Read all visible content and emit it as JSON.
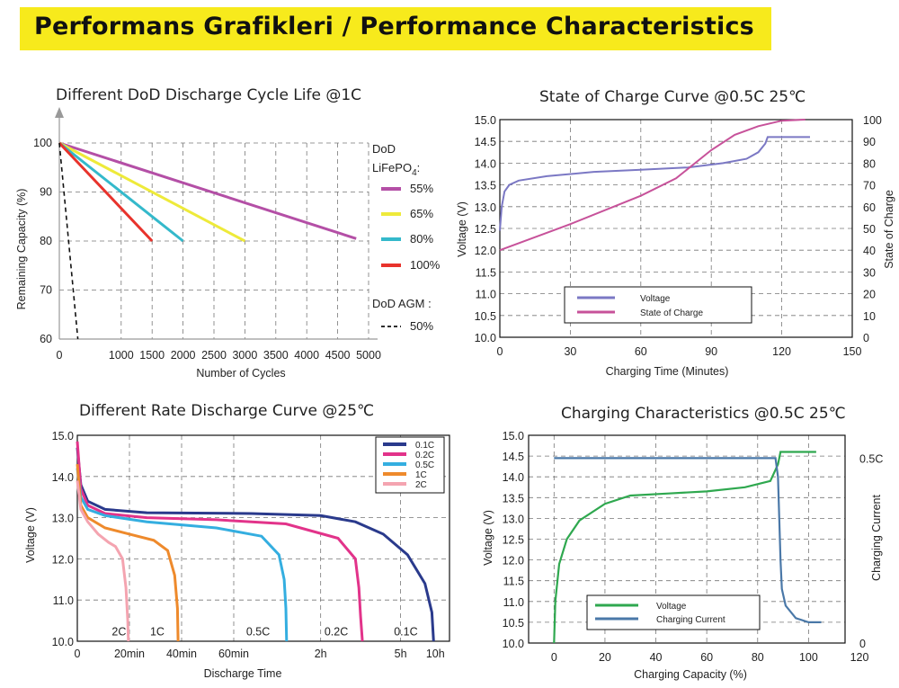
{
  "banner": {
    "title": "Performans Grafikleri / Performance Characteristics",
    "color": "#f7ea1c"
  },
  "chart_data": [
    {
      "id": "dod",
      "type": "line",
      "title": "Different DoD Discharge Cycle Life @1C",
      "xlabel": "Number of Cycles",
      "ylabel": "Remaining Capacity (%)",
      "xlim": [
        0,
        5000
      ],
      "ylim": [
        60,
        100
      ],
      "xticks": [
        "0",
        "1000",
        "1500",
        "2000",
        "2500",
        "3000",
        "3500",
        "4000",
        "4500",
        "5000"
      ],
      "xtick_values": [
        0,
        1000,
        1500,
        2000,
        2500,
        3000,
        3500,
        4000,
        4500,
        5000
      ],
      "yticks": [
        "60",
        "70",
        "80",
        "90",
        "100"
      ],
      "ytick_values": [
        60,
        70,
        80,
        90,
        100
      ],
      "grid": true,
      "legend_header": "DoD",
      "legend_chem": "LiFePO",
      "legend_chem_sub": "4",
      "legend_chem_tail": ":",
      "legend_header2": "DoD AGM :",
      "series": [
        {
          "name": "55%",
          "color": "#b44fa6",
          "dash": false,
          "points": [
            [
              0,
              100
            ],
            [
              4800,
              80.5
            ]
          ]
        },
        {
          "name": "65%",
          "color": "#eeea3a",
          "dash": false,
          "points": [
            [
              0,
              100
            ],
            [
              3000,
              80
            ]
          ]
        },
        {
          "name": "80%",
          "color": "#34b9cb",
          "dash": false,
          "points": [
            [
              0,
              100
            ],
            [
              2000,
              80
            ]
          ]
        },
        {
          "name": "100%",
          "color": "#e8332c",
          "dash": false,
          "points": [
            [
              0,
              100
            ],
            [
              1500,
              80
            ]
          ]
        },
        {
          "name": "50%",
          "color": "#111111",
          "dash": true,
          "points": [
            [
              0,
              100
            ],
            [
              300,
              60
            ]
          ]
        }
      ]
    },
    {
      "id": "soc",
      "type": "line",
      "title": "State of Charge Curve @0.5C 25℃",
      "xlabel": "Charging Time (Minutes)",
      "ylabel": "Voltage (V)",
      "ylabel_right": "State of Charge",
      "xlim": [
        0,
        150
      ],
      "ylim": [
        10.0,
        15.0
      ],
      "ylim_right": [
        0,
        100
      ],
      "xticks": [
        "0",
        "30",
        "60",
        "90",
        "120",
        "150"
      ],
      "xtick_values": [
        0,
        30,
        60,
        90,
        120,
        150
      ],
      "yticks": [
        "10.0",
        "10.5",
        "11.0",
        "11.5",
        "12.0",
        "12.5",
        "13.0",
        "13.5",
        "14.0",
        "14.5",
        "15.0"
      ],
      "ytick_values": [
        10.0,
        10.5,
        11.0,
        11.5,
        12.0,
        12.5,
        13.0,
        13.5,
        14.0,
        14.5,
        15.0
      ],
      "yticks_right": [
        "0",
        "10",
        "20",
        "30",
        "40",
        "50",
        "60",
        "70",
        "80",
        "90",
        "100"
      ],
      "ytick_right_values": [
        0,
        10,
        20,
        30,
        40,
        50,
        60,
        70,
        80,
        90,
        100
      ],
      "grid": true,
      "series": [
        {
          "name": "Voltage",
          "color": "#7b78c4",
          "axis": "left",
          "points": [
            [
              0,
              12.45
            ],
            [
              0.8,
              13.0
            ],
            [
              2,
              13.35
            ],
            [
              4,
              13.5
            ],
            [
              8,
              13.6
            ],
            [
              20,
              13.7
            ],
            [
              40,
              13.8
            ],
            [
              60,
              13.85
            ],
            [
              80,
              13.9
            ],
            [
              95,
              14.0
            ],
            [
              105,
              14.1
            ],
            [
              110,
              14.25
            ],
            [
              113,
              14.45
            ],
            [
              114,
              14.6
            ],
            [
              132,
              14.6
            ]
          ]
        },
        {
          "name": "State of Charge",
          "color": "#c7529a",
          "axis": "right",
          "points": [
            [
              0,
              40
            ],
            [
              30,
              52
            ],
            [
              60,
              65
            ],
            [
              75,
              73
            ],
            [
              90,
              86
            ],
            [
              100,
              93
            ],
            [
              110,
              97
            ],
            [
              120,
              99.5
            ],
            [
              130,
              100
            ]
          ]
        }
      ]
    },
    {
      "id": "rate",
      "type": "line",
      "title": "Different Rate Discharge Curve @25℃",
      "xlabel": "Discharge Time",
      "ylabel": "Voltage (V)",
      "xlim": [
        0,
        10.5
      ],
      "ylim": [
        10.0,
        15.0
      ],
      "xticks": [
        "0",
        "20min",
        "40min",
        "60min",
        "2h",
        "5h",
        "10h"
      ],
      "xtick_values": [
        0,
        1.5,
        3.0,
        4.5,
        7.0,
        9.3,
        10.3
      ],
      "xgrid_values": [
        1.5,
        3.0,
        4.5,
        7.0,
        9.3
      ],
      "yticks": [
        "10.0",
        "11.0",
        "12.0",
        "13.0",
        "14.0",
        "15.0"
      ],
      "ytick_values": [
        10,
        11,
        12,
        13,
        14,
        15
      ],
      "grid": true,
      "series": [
        {
          "name": "0.1C",
          "label": "0.1C",
          "label_at": [
            9.45,
            10.1
          ],
          "color": "#2a3a8c",
          "points": [
            [
              0,
              14.7
            ],
            [
              0.1,
              13.8
            ],
            [
              0.3,
              13.4
            ],
            [
              0.8,
              13.2
            ],
            [
              2,
              13.12
            ],
            [
              5,
              13.1
            ],
            [
              7,
              13.05
            ],
            [
              8,
              12.9
            ],
            [
              8.8,
              12.6
            ],
            [
              9.5,
              12.1
            ],
            [
              10.0,
              11.4
            ],
            [
              10.2,
              10.7
            ],
            [
              10.25,
              10.0
            ]
          ]
        },
        {
          "name": "0.2C",
          "label": "0.2C",
          "label_at": [
            7.45,
            10.1
          ],
          "color": "#e2338a",
          "points": [
            [
              0,
              14.85
            ],
            [
              0.1,
              13.7
            ],
            [
              0.3,
              13.3
            ],
            [
              0.8,
              13.1
            ],
            [
              2,
              13.0
            ],
            [
              4,
              12.95
            ],
            [
              6,
              12.85
            ],
            [
              7.5,
              12.5
            ],
            [
              8.0,
              12.0
            ],
            [
              8.1,
              11.3
            ],
            [
              8.15,
              10.6
            ],
            [
              8.2,
              10.0
            ]
          ]
        },
        {
          "name": "0.5C",
          "label": "0.5C",
          "label_at": [
            5.2,
            10.1
          ],
          "color": "#34aee0",
          "points": [
            [
              0,
              14.2
            ],
            [
              0.1,
              13.5
            ],
            [
              0.3,
              13.2
            ],
            [
              0.8,
              13.05
            ],
            [
              2,
              12.9
            ],
            [
              4,
              12.75
            ],
            [
              5.3,
              12.55
            ],
            [
              5.8,
              12.1
            ],
            [
              5.95,
              11.5
            ],
            [
              6.0,
              10.8
            ],
            [
              6.02,
              10.0
            ]
          ]
        },
        {
          "name": "1C",
          "label": "1C",
          "label_at": [
            2.3,
            10.1
          ],
          "color": "#ee8a2c",
          "points": [
            [
              0,
              14.3
            ],
            [
              0.1,
              13.3
            ],
            [
              0.3,
              13.0
            ],
            [
              0.8,
              12.75
            ],
            [
              1.5,
              12.6
            ],
            [
              2.2,
              12.45
            ],
            [
              2.6,
              12.2
            ],
            [
              2.8,
              11.6
            ],
            [
              2.88,
              10.8
            ],
            [
              2.9,
              10.0
            ]
          ]
        },
        {
          "name": "2C",
          "label": "2C",
          "label_at": [
            1.2,
            10.1
          ],
          "color": "#f4a4b0",
          "points": [
            [
              0,
              13.9
            ],
            [
              0.1,
              13.2
            ],
            [
              0.3,
              12.9
            ],
            [
              0.6,
              12.6
            ],
            [
              0.9,
              12.4
            ],
            [
              1.1,
              12.3
            ],
            [
              1.3,
              12.0
            ],
            [
              1.4,
              11.3
            ],
            [
              1.45,
              10.5
            ],
            [
              1.47,
              10.0
            ]
          ]
        }
      ]
    },
    {
      "id": "charge",
      "type": "line",
      "title": "Charging Characteristics @0.5C 25℃",
      "xlabel": "Charging Capacity (%)",
      "ylabel": "Voltage (V)",
      "ylabel_right": "Charging Current",
      "xlim": [
        -10,
        120
      ],
      "ylim": [
        10.0,
        15.0
      ],
      "xticks": [
        "0",
        "20",
        "40",
        "60",
        "80",
        "100",
        "120"
      ],
      "xtick_values": [
        0,
        20,
        40,
        60,
        80,
        100,
        120
      ],
      "yticks": [
        "10.0",
        "10.5",
        "11.0",
        "11.5",
        "12.0",
        "12.5",
        "13.0",
        "13.5",
        "14.0",
        "14.5",
        "15.0"
      ],
      "ytick_values": [
        10.0,
        10.5,
        11.0,
        11.5,
        12.0,
        12.5,
        13.0,
        13.5,
        14.0,
        14.5,
        15.0
      ],
      "yticks_right": [
        "0",
        "0.5C"
      ],
      "ytick_right_values": [
        10.0,
        14.45
      ],
      "grid": true,
      "series": [
        {
          "name": "Voltage",
          "color": "#2fa84f",
          "points": [
            [
              0,
              10.0
            ],
            [
              0.5,
              11.0
            ],
            [
              2,
              11.9
            ],
            [
              5,
              12.5
            ],
            [
              10,
              12.95
            ],
            [
              20,
              13.35
            ],
            [
              30,
              13.55
            ],
            [
              45,
              13.6
            ],
            [
              60,
              13.65
            ],
            [
              75,
              13.75
            ],
            [
              85,
              13.9
            ],
            [
              88,
              14.3
            ],
            [
              89,
              14.6
            ],
            [
              103,
              14.6
            ]
          ]
        },
        {
          "name": "Charging Current",
          "color": "#4a78a8",
          "points": [
            [
              0,
              14.45
            ],
            [
              40,
              14.45
            ],
            [
              80,
              14.45
            ],
            [
              87,
              14.45
            ],
            [
              88,
              14.0
            ],
            [
              88.5,
              13.0
            ],
            [
              89,
              12.0
            ],
            [
              89.5,
              11.3
            ],
            [
              91,
              10.9
            ],
            [
              95,
              10.6
            ],
            [
              100,
              10.5
            ],
            [
              105,
              10.5
            ]
          ]
        }
      ]
    }
  ]
}
